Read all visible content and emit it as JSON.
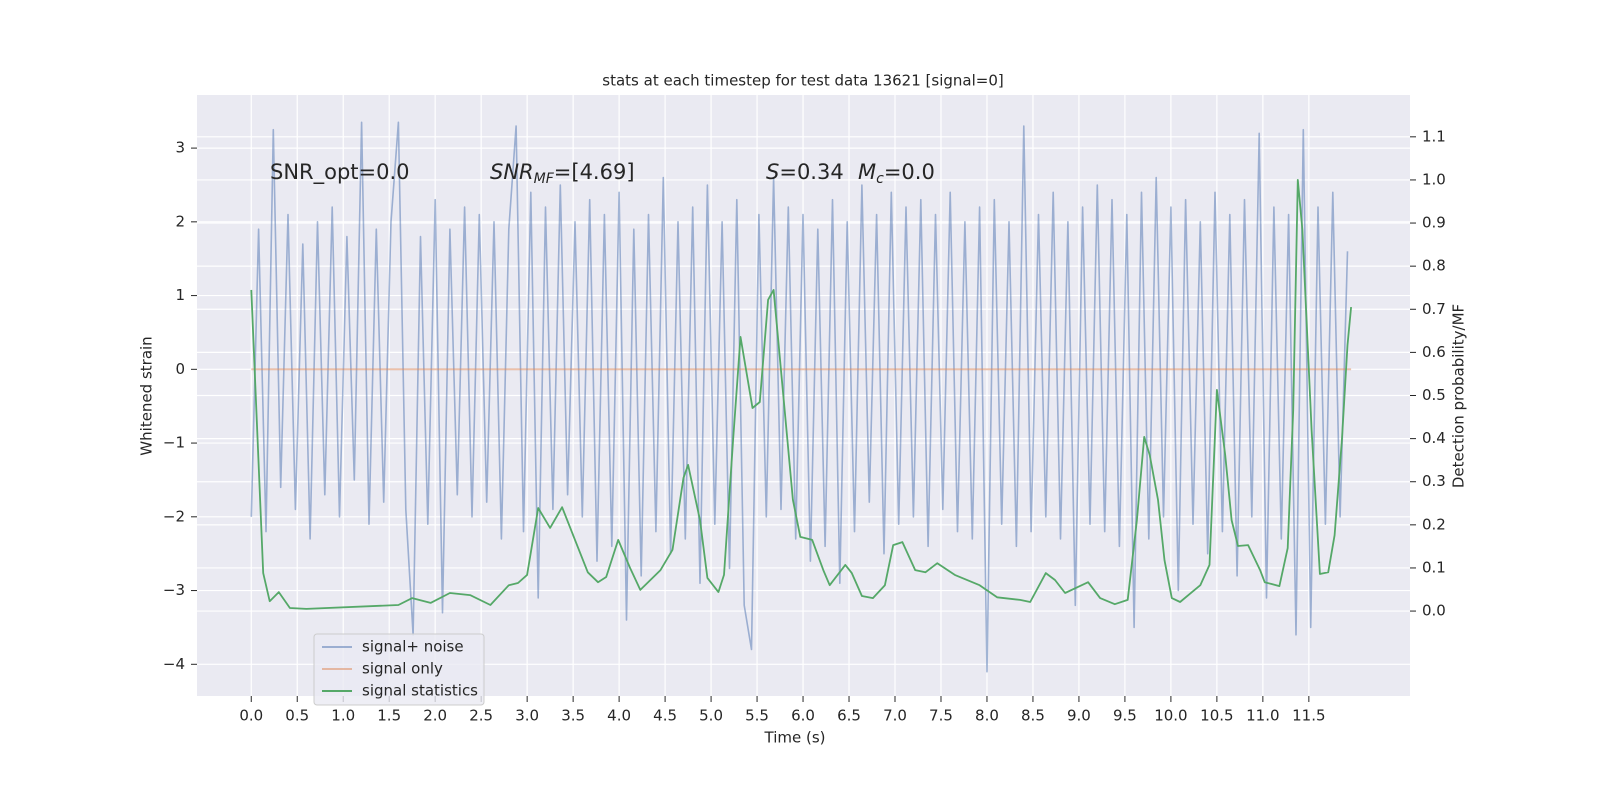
{
  "chart_data": {
    "type": "line",
    "title": "stats at each timestep for test data 13621 [signal=0]",
    "xlabel": "Time (s)",
    "ylabel": "Whitened strain",
    "y2label": "Detection probability/MF",
    "annotations": [
      [
        "SNR_opt=0.0"
      ],
      [
        "SNR",
        "MF",
        "=[4.69]"
      ],
      [
        "S",
        "=0.34"
      ],
      [
        "M",
        "c",
        "=0.0"
      ]
    ],
    "grid": true,
    "legend": "lower left",
    "xlim": [
      -0.59,
      12.6
    ],
    "ylim": [
      -4.43,
      3.72
    ],
    "y2lim": [
      -0.197,
      1.197
    ],
    "xticks": [
      {
        "value": 0,
        "label": "0.0"
      },
      0.5,
      {
        "value": 1,
        "label": "1.0"
      },
      1.5,
      {
        "value": 2,
        "label": "2.0"
      },
      2.5,
      {
        "value": 3,
        "label": "3.0"
      },
      3.5,
      {
        "value": 4,
        "label": "4.0"
      },
      4.5,
      {
        "value": 5,
        "label": "5.0"
      },
      5.5,
      {
        "value": 6,
        "label": "6.0"
      },
      6.5,
      {
        "value": 7,
        "label": "7.0"
      },
      7.5,
      {
        "value": 8,
        "label": "8.0"
      },
      8.5,
      {
        "value": 9,
        "label": "9.0"
      },
      9.5,
      {
        "value": 10,
        "label": "10.0"
      },
      10.5,
      {
        "value": 11,
        "label": "11.0"
      },
      11.5
    ],
    "yticks": [
      {
        "value": -4,
        "label": "−4"
      },
      {
        "value": -3,
        "label": "−3"
      },
      {
        "value": -2,
        "label": "−2"
      },
      {
        "value": -1,
        "label": "−1"
      },
      0,
      1,
      2,
      3
    ],
    "y2ticks": [
      {
        "value": 0,
        "label": "0.0"
      },
      0.1,
      0.2,
      0.3,
      0.4,
      0.5,
      0.6,
      0.7,
      0.8,
      0.9,
      {
        "value": 1,
        "label": "1.0"
      },
      1.1
    ],
    "series": [
      {
        "name": "signal+ noise",
        "color": "#4c72b0",
        "opacity": 0.5,
        "x": [
          0,
          0.08,
          0.16,
          0.24,
          0.32,
          0.4,
          0.48,
          0.56,
          0.64,
          0.72,
          0.8,
          0.88,
          0.96,
          1.04,
          1.12,
          1.2,
          1.28,
          1.36,
          1.44,
          1.52,
          1.6,
          1.68,
          1.76,
          1.84,
          1.92,
          2,
          2.08,
          2.16,
          2.24,
          2.32,
          2.4,
          2.48,
          2.56,
          2.64,
          2.72,
          2.8,
          2.88,
          2.96,
          3.04,
          3.12,
          3.2,
          3.28,
          3.36,
          3.44,
          3.52,
          3.6,
          3.68,
          3.76,
          3.84,
          3.92,
          4,
          4.08,
          4.16,
          4.24,
          4.32,
          4.4,
          4.48,
          4.56,
          4.64,
          4.72,
          4.8,
          4.88,
          4.96,
          5.04,
          5.12,
          5.2,
          5.28,
          5.36,
          5.44,
          5.52,
          5.6,
          5.68,
          5.76,
          5.84,
          5.92,
          6,
          6.08,
          6.16,
          6.24,
          6.32,
          6.4,
          6.48,
          6.56,
          6.64,
          6.72,
          6.8,
          6.88,
          6.96,
          7.04,
          7.12,
          7.2,
          7.28,
          7.36,
          7.44,
          7.52,
          7.6,
          7.68,
          7.76,
          7.84,
          7.92,
          8,
          8.08,
          8.16,
          8.24,
          8.32,
          8.4,
          8.48,
          8.56,
          8.64,
          8.72,
          8.8,
          8.88,
          8.96,
          9.04,
          9.12,
          9.2,
          9.28,
          9.36,
          9.44,
          9.52,
          9.6,
          9.68,
          9.76,
          9.84,
          9.92,
          10,
          10.08,
          10.16,
          10.24,
          10.32,
          10.4,
          10.48,
          10.56,
          10.64,
          10.72,
          10.8,
          10.88,
          10.96,
          11.04,
          11.12,
          11.2,
          11.28,
          11.36,
          11.44,
          11.52,
          11.6,
          11.68,
          11.76,
          11.84,
          11.92
        ],
        "values": [
          -2.0,
          1.9,
          -2.2,
          3.25,
          -1.6,
          2.1,
          -1.9,
          1.7,
          -2.3,
          2.0,
          -1.7,
          2.2,
          -2.0,
          1.8,
          -1.5,
          3.35,
          -2.1,
          1.9,
          -1.8,
          2.0,
          3.35,
          -1.9,
          -3.6,
          1.8,
          -2.1,
          2.3,
          -3.3,
          1.9,
          -1.7,
          2.2,
          -2.0,
          2.1,
          -1.8,
          2.0,
          -2.3,
          1.9,
          3.3,
          -2.2,
          2.4,
          -3.1,
          2.2,
          -1.9,
          2.5,
          -1.7,
          2.0,
          -2.0,
          2.3,
          -2.6,
          2.1,
          -2.4,
          2.4,
          -3.4,
          1.9,
          -2.8,
          2.1,
          -2.2,
          2.6,
          -2.5,
          2.0,
          -2.3,
          2.2,
          -2.9,
          2.5,
          -2.1,
          2.0,
          -2.7,
          2.3,
          -3.2,
          -3.8,
          2.1,
          -2.0,
          2.6,
          -1.9,
          2.2,
          -2.3,
          2.1,
          -2.6,
          1.9,
          -2.4,
          2.3,
          -2.9,
          2.0,
          -2.2,
          2.5,
          -1.8,
          2.1,
          -2.5,
          2.4,
          -2.1,
          2.2,
          -2.0,
          2.3,
          -2.4,
          2.1,
          -1.9,
          2.4,
          -2.2,
          2.0,
          -2.3,
          2.2,
          -4.1,
          2.3,
          -2.1,
          2.0,
          -2.4,
          3.3,
          -2.2,
          2.1,
          -2.0,
          2.4,
          -2.3,
          2.0,
          -3.2,
          2.2,
          -2.1,
          2.5,
          -2.2,
          2.3,
          -2.4,
          2.1,
          -3.5,
          2.4,
          -2.3,
          2.6,
          -2.0,
          2.2,
          -3.0,
          2.3,
          -2.1,
          2.0,
          -2.5,
          2.4,
          -2.2,
          2.1,
          -2.8,
          2.3,
          -2.0,
          3.2,
          -3.1,
          2.2,
          -2.3,
          2.1,
          -3.6,
          3.25,
          -3.5,
          2.2,
          -2.1,
          2.4,
          -2.0,
          1.6
        ]
      },
      {
        "name": "signal only",
        "color": "#dd8452",
        "opacity": 0.5,
        "x": [
          0,
          11.96
        ],
        "values": [
          0,
          0
        ]
      },
      {
        "name": "signal statistics",
        "color": "#55a868",
        "opacity": 1,
        "axis": "y2",
        "x": [
          0,
          0.13,
          0.2,
          0.3,
          0.42,
          0.6,
          1.6,
          1.75,
          1.95,
          2.16,
          2.38,
          2.6,
          2.8,
          2.9,
          3.0,
          3.12,
          3.25,
          3.38,
          3.52,
          3.66,
          3.77,
          3.86,
          3.99,
          4.12,
          4.23,
          4.45,
          4.58,
          4.7,
          4.75,
          4.88,
          4.96,
          5.08,
          5.14,
          5.24,
          5.32,
          5.45,
          5.53,
          5.62,
          5.68,
          5.78,
          5.89,
          5.97,
          6.1,
          6.22,
          6.29,
          6.46,
          6.53,
          6.64,
          6.76,
          6.89,
          6.98,
          7.08,
          7.22,
          7.33,
          7.46,
          7.65,
          7.92,
          8.11,
          8.36,
          8.47,
          8.64,
          8.74,
          8.85,
          8.99,
          9.1,
          9.23,
          9.39,
          9.53,
          9.63,
          9.71,
          9.77,
          9.86,
          9.93,
          10.01,
          10.1,
          10.23,
          10.32,
          10.42,
          10.5,
          10.59,
          10.66,
          10.73,
          10.84,
          10.97,
          11.02,
          11.18,
          11.27,
          11.33,
          11.38,
          11.43,
          11.53,
          11.62,
          11.71,
          11.78,
          11.86,
          11.92,
          11.96
        ],
        "values": [
          0.745,
          0.088,
          0.023,
          0.044,
          0.007,
          0.005,
          0.014,
          0.03,
          0.019,
          0.042,
          0.037,
          0.014,
          0.06,
          0.065,
          0.084,
          0.239,
          0.193,
          0.241,
          0.165,
          0.09,
          0.067,
          0.079,
          0.165,
          0.1,
          0.049,
          0.095,
          0.142,
          0.309,
          0.339,
          0.211,
          0.077,
          0.044,
          0.084,
          0.397,
          0.636,
          0.471,
          0.485,
          0.722,
          0.745,
          0.513,
          0.258,
          0.172,
          0.165,
          0.095,
          0.06,
          0.107,
          0.088,
          0.035,
          0.03,
          0.06,
          0.153,
          0.16,
          0.095,
          0.09,
          0.111,
          0.084,
          0.06,
          0.032,
          0.026,
          0.021,
          0.088,
          0.072,
          0.042,
          0.056,
          0.067,
          0.03,
          0.016,
          0.026,
          0.211,
          0.404,
          0.362,
          0.258,
          0.118,
          0.03,
          0.021,
          0.044,
          0.06,
          0.107,
          0.513,
          0.362,
          0.211,
          0.151,
          0.153,
          0.095,
          0.067,
          0.058,
          0.146,
          0.466,
          1.0,
          0.884,
          0.42,
          0.086,
          0.09,
          0.176,
          0.397,
          0.617,
          0.705
        ]
      }
    ]
  }
}
